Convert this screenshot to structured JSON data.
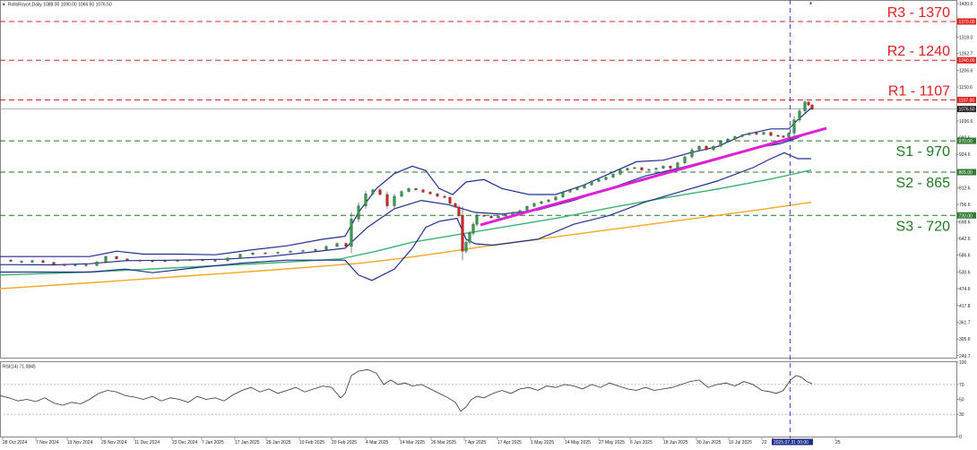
{
  "header": {
    "symbol_info": "RollsRoyce,Daily  1088.00 1090.00 1066.50 1076.50"
  },
  "rsi_header": "RSI(14) 71.0845",
  "current_price_label": "1076.50",
  "cursor_time_label": "2025.07.31 00:00",
  "levels": [
    {
      "name": "R3 - 1370",
      "price": 1370,
      "tag": "1370.00",
      "color": "#e02020",
      "style": "dashed"
    },
    {
      "name": "R2 - 1240",
      "price": 1240,
      "tag": "1240.00",
      "color": "#e02020",
      "style": "dashed"
    },
    {
      "name": "R1 - 1107",
      "price": 1107,
      "tag": "1107.00",
      "color": "#e02020",
      "style": "dashed"
    },
    {
      "name": "S1 - 970",
      "price": 970,
      "tag": "970.00",
      "color": "#1e7a1e",
      "style": "dashed"
    },
    {
      "name": "S2 - 865",
      "price": 865,
      "tag": "865.00",
      "color": "#1e7a1e",
      "style": "dashed"
    },
    {
      "name": "S3 - 720",
      "price": 720,
      "tag": "720.00",
      "color": "#1e7a1e",
      "style": "dashed"
    }
  ],
  "chart_data": {
    "type": "candlestick",
    "price_axis": {
      "range": [
        252,
        1430
      ],
      "ticks": [
        1430.0,
        1374.0,
        1318.0,
        1262.7,
        1206.6,
        1150.6,
        1036.6,
        980.6,
        924.6,
        868.6,
        812.6,
        756.6,
        698.6,
        642.6,
        586.6,
        530.6,
        474.6,
        417.8,
        361.7,
        305.6,
        249.7
      ]
    },
    "rsi_axis": {
      "range": [
        0,
        100
      ],
      "ticks": [
        100,
        70,
        50,
        30,
        0
      ]
    },
    "x_labels": [
      "28 Oct 2024",
      "7 Nov 2024",
      "19 Nov 2024",
      "29 Nov 2024",
      "11 Dec 2024",
      "23 Dec 2024",
      "7 Jan 2025",
      "17 Jan 2025",
      "29 Jan 2025",
      "10 Feb 2025",
      "20 Feb 2025",
      "4 Mar 2025",
      "14 Mar 2025",
      "26 Mar 2025",
      "7 Apr 2025",
      "17 Apr 2025",
      "1 May 2025",
      "14 May 2025",
      "27 May 2025",
      "6 Jun 2025",
      "18 Jun 2025",
      "30 Jun 2025",
      "10 Jul 2025",
      "22",
      "2025.07.31 00:00",
      "25"
    ],
    "close_series": [
      [
        0,
        570
      ],
      [
        12,
        566
      ],
      [
        24,
        563
      ],
      [
        36,
        568
      ],
      [
        48,
        562
      ],
      [
        60,
        556
      ],
      [
        72,
        552
      ],
      [
        84,
        554
      ],
      [
        96,
        552
      ],
      [
        108,
        564
      ],
      [
        118,
        582
      ],
      [
        130,
        574
      ],
      [
        142,
        570
      ],
      [
        156,
        568
      ],
      [
        170,
        565
      ],
      [
        184,
        568
      ],
      [
        198,
        569
      ],
      [
        212,
        571
      ],
      [
        226,
        569
      ],
      [
        240,
        568
      ],
      [
        254,
        577
      ],
      [
        268,
        589
      ],
      [
        282,
        594
      ],
      [
        296,
        593
      ],
      [
        310,
        596
      ],
      [
        324,
        600
      ],
      [
        338,
        602
      ],
      [
        352,
        606
      ],
      [
        364,
        616
      ],
      [
        376,
        626
      ],
      [
        386,
        616
      ],
      [
        392,
        708
      ],
      [
        400,
        752
      ],
      [
        408,
        792
      ],
      [
        416,
        806
      ],
      [
        424,
        790
      ],
      [
        432,
        752
      ],
      [
        440,
        784
      ],
      [
        448,
        800
      ],
      [
        456,
        810
      ],
      [
        464,
        806
      ],
      [
        472,
        798
      ],
      [
        480,
        792
      ],
      [
        488,
        784
      ],
      [
        496,
        780
      ],
      [
        502,
        760
      ],
      [
        508,
        748
      ],
      [
        512,
        720
      ],
      [
        516,
        600
      ],
      [
        520,
        630
      ],
      [
        524,
        660
      ],
      [
        528,
        690
      ],
      [
        532,
        720
      ],
      [
        540,
        718
      ],
      [
        548,
        712
      ],
      [
        556,
        718
      ],
      [
        564,
        722
      ],
      [
        572,
        730
      ],
      [
        580,
        736
      ],
      [
        588,
        750
      ],
      [
        596,
        760
      ],
      [
        604,
        766
      ],
      [
        612,
        772
      ],
      [
        620,
        782
      ],
      [
        628,
        798
      ],
      [
        636,
        806
      ],
      [
        644,
        812
      ],
      [
        652,
        822
      ],
      [
        660,
        834
      ],
      [
        668,
        840
      ],
      [
        676,
        848
      ],
      [
        684,
        858
      ],
      [
        692,
        872
      ],
      [
        700,
        878
      ],
      [
        708,
        880
      ],
      [
        716,
        872
      ],
      [
        724,
        874
      ],
      [
        732,
        878
      ],
      [
        740,
        885
      ],
      [
        748,
        878
      ],
      [
        756,
        896
      ],
      [
        764,
        916
      ],
      [
        772,
        940
      ],
      [
        780,
        952
      ],
      [
        788,
        940
      ],
      [
        796,
        952
      ],
      [
        804,
        968
      ],
      [
        812,
        976
      ],
      [
        820,
        984
      ],
      [
        828,
        990
      ],
      [
        836,
        996
      ],
      [
        844,
        992
      ],
      [
        852,
        998
      ],
      [
        860,
        988
      ],
      [
        868,
        986
      ],
      [
        874,
        982
      ],
      [
        880,
        996
      ],
      [
        886,
        1040
      ],
      [
        892,
        1070
      ],
      [
        898,
        1100
      ],
      [
        902,
        1090
      ],
      [
        906,
        1076
      ]
    ],
    "series": [
      {
        "name": "SMA slow",
        "color": "#f5a623",
        "points": [
          [
            0,
            474
          ],
          [
            100,
            494
          ],
          [
            200,
            515
          ],
          [
            300,
            536
          ],
          [
            400,
            559
          ],
          [
            450,
            577
          ],
          [
            500,
            598
          ],
          [
            550,
            620
          ],
          [
            600,
            640
          ],
          [
            650,
            660
          ],
          [
            700,
            680
          ],
          [
            750,
            700
          ],
          [
            800,
            720
          ],
          [
            850,
            740
          ],
          [
            905,
            764
          ]
        ]
      },
      {
        "name": "SMA mid",
        "color": "#3cb371",
        "points": [
          [
            0,
            520
          ],
          [
            100,
            530
          ],
          [
            200,
            545
          ],
          [
            300,
            560
          ],
          [
            380,
            574
          ],
          [
            420,
            600
          ],
          [
            460,
            630
          ],
          [
            520,
            660
          ],
          [
            560,
            680
          ],
          [
            620,
            710
          ],
          [
            680,
            745
          ],
          [
            740,
            778
          ],
          [
            800,
            808
          ],
          [
            860,
            842
          ],
          [
            905,
            872
          ]
        ]
      },
      {
        "name": "BB upper",
        "color": "#1f2f8f",
        "points": [
          [
            0,
            582
          ],
          [
            60,
            582
          ],
          [
            100,
            582
          ],
          [
            130,
            600
          ],
          [
            160,
            590
          ],
          [
            200,
            590
          ],
          [
            240,
            588
          ],
          [
            280,
            604
          ],
          [
            320,
            618
          ],
          [
            360,
            640
          ],
          [
            385,
            650
          ],
          [
            400,
            730
          ],
          [
            420,
            810
          ],
          [
            440,
            860
          ],
          [
            460,
            885
          ],
          [
            475,
            870
          ],
          [
            490,
            810
          ],
          [
            505,
            790
          ],
          [
            520,
            832
          ],
          [
            540,
            840
          ],
          [
            560,
            810
          ],
          [
            590,
            790
          ],
          [
            620,
            790
          ],
          [
            650,
            820
          ],
          [
            680,
            860
          ],
          [
            710,
            900
          ],
          [
            740,
            905
          ],
          [
            770,
            930
          ],
          [
            800,
            950
          ],
          [
            830,
            990
          ],
          [
            860,
            1010
          ],
          [
            880,
            1010
          ],
          [
            890,
            1040
          ],
          [
            905,
            1080
          ]
        ]
      },
      {
        "name": "BB middle",
        "color": "#1f2f8f",
        "points": [
          [
            0,
            555
          ],
          [
            60,
            554
          ],
          [
            100,
            558
          ],
          [
            140,
            568
          ],
          [
            200,
            570
          ],
          [
            250,
            573
          ],
          [
            300,
            582
          ],
          [
            350,
            598
          ],
          [
            385,
            610
          ],
          [
            410,
            680
          ],
          [
            440,
            742
          ],
          [
            470,
            770
          ],
          [
            500,
            756
          ],
          [
            530,
            730
          ],
          [
            560,
            724
          ],
          [
            600,
            738
          ],
          [
            640,
            770
          ],
          [
            680,
            810
          ],
          [
            720,
            852
          ],
          [
            760,
            880
          ],
          [
            800,
            912
          ],
          [
            840,
            945
          ],
          [
            870,
            960
          ],
          [
            890,
            980
          ],
          [
            905,
            1000
          ]
        ]
      },
      {
        "name": "BB lower",
        "color": "#1f2f8f",
        "points": [
          [
            0,
            530
          ],
          [
            60,
            530
          ],
          [
            100,
            530
          ],
          [
            140,
            540
          ],
          [
            170,
            528
          ],
          [
            220,
            545
          ],
          [
            270,
            560
          ],
          [
            320,
            570
          ],
          [
            360,
            570
          ],
          [
            385,
            570
          ],
          [
            400,
            520
          ],
          [
            415,
            502
          ],
          [
            440,
            540
          ],
          [
            460,
            610
          ],
          [
            475,
            680
          ],
          [
            490,
            700
          ],
          [
            510,
            710
          ],
          [
            520,
            640
          ],
          [
            530,
            625
          ],
          [
            550,
            620
          ],
          [
            600,
            640
          ],
          [
            640,
            690
          ],
          [
            680,
            720
          ],
          [
            720,
            765
          ],
          [
            760,
            800
          ],
          [
            800,
            835
          ],
          [
            840,
            880
          ],
          [
            860,
            910
          ],
          [
            875,
            930
          ],
          [
            890,
            910
          ],
          [
            905,
            910
          ]
        ]
      }
    ],
    "trendline": {
      "color": "#e020d8",
      "points": [
        [
          536,
          688
        ],
        [
          922,
          1012
        ]
      ]
    },
    "rsi_series": [
      [
        0,
        55
      ],
      [
        10,
        52
      ],
      [
        20,
        48
      ],
      [
        30,
        50
      ],
      [
        40,
        47
      ],
      [
        50,
        52
      ],
      [
        60,
        45
      ],
      [
        70,
        42
      ],
      [
        80,
        46
      ],
      [
        90,
        44
      ],
      [
        100,
        50
      ],
      [
        110,
        58
      ],
      [
        120,
        62
      ],
      [
        130,
        60
      ],
      [
        140,
        55
      ],
      [
        150,
        53
      ],
      [
        160,
        50
      ],
      [
        170,
        54
      ],
      [
        180,
        48
      ],
      [
        190,
        52
      ],
      [
        200,
        50
      ],
      [
        210,
        46
      ],
      [
        220,
        54
      ],
      [
        230,
        50
      ],
      [
        240,
        52
      ],
      [
        250,
        48
      ],
      [
        260,
        56
      ],
      [
        270,
        62
      ],
      [
        280,
        66
      ],
      [
        290,
        60
      ],
      [
        300,
        64
      ],
      [
        310,
        58
      ],
      [
        320,
        62
      ],
      [
        330,
        66
      ],
      [
        340,
        60
      ],
      [
        350,
        64
      ],
      [
        360,
        68
      ],
      [
        370,
        66
      ],
      [
        380,
        52
      ],
      [
        385,
        58
      ],
      [
        392,
        82
      ],
      [
        400,
        88
      ],
      [
        410,
        90
      ],
      [
        420,
        85
      ],
      [
        428,
        70
      ],
      [
        436,
        76
      ],
      [
        444,
        70
      ],
      [
        452,
        72
      ],
      [
        460,
        68
      ],
      [
        470,
        70
      ],
      [
        480,
        64
      ],
      [
        490,
        58
      ],
      [
        500,
        52
      ],
      [
        508,
        46
      ],
      [
        514,
        34
      ],
      [
        520,
        40
      ],
      [
        526,
        50
      ],
      [
        532,
        54
      ],
      [
        540,
        52
      ],
      [
        550,
        58
      ],
      [
        560,
        62
      ],
      [
        570,
        58
      ],
      [
        580,
        64
      ],
      [
        590,
        66
      ],
      [
        600,
        62
      ],
      [
        610,
        68
      ],
      [
        620,
        66
      ],
      [
        630,
        70
      ],
      [
        640,
        68
      ],
      [
        650,
        64
      ],
      [
        660,
        70
      ],
      [
        670,
        66
      ],
      [
        680,
        72
      ],
      [
        690,
        68
      ],
      [
        700,
        64
      ],
      [
        710,
        62
      ],
      [
        720,
        66
      ],
      [
        730,
        62
      ],
      [
        740,
        64
      ],
      [
        750,
        66
      ],
      [
        760,
        70
      ],
      [
        770,
        74
      ],
      [
        780,
        76
      ],
      [
        790,
        66
      ],
      [
        800,
        70
      ],
      [
        810,
        72
      ],
      [
        820,
        68
      ],
      [
        830,
        74
      ],
      [
        840,
        70
      ],
      [
        850,
        62
      ],
      [
        860,
        60
      ],
      [
        866,
        58
      ],
      [
        874,
        62
      ],
      [
        882,
        76
      ],
      [
        888,
        82
      ],
      [
        894,
        80
      ],
      [
        900,
        74
      ],
      [
        906,
        71
      ]
    ]
  }
}
